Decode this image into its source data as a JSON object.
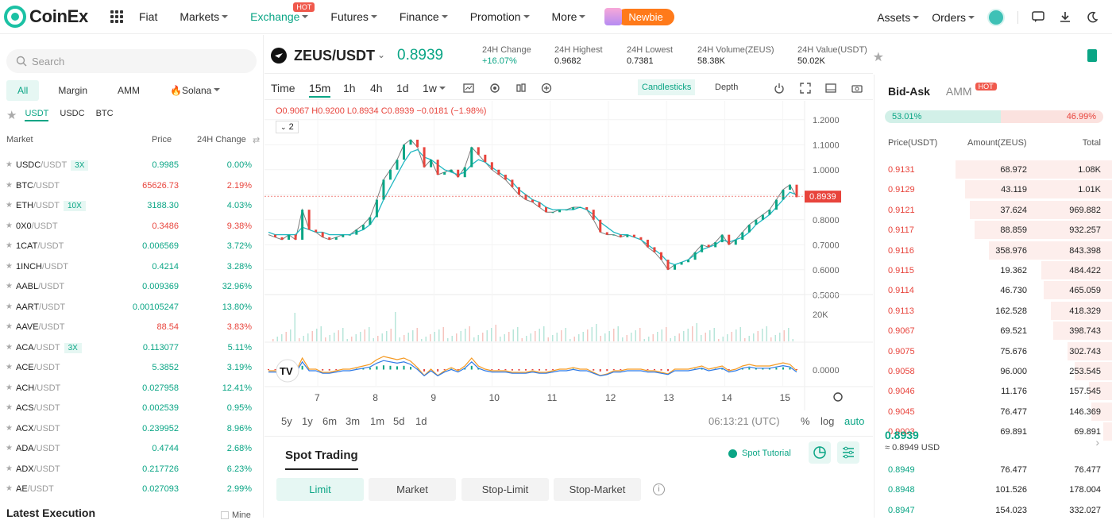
{
  "brand": {
    "name": "CoinEx"
  },
  "nav": {
    "items": [
      {
        "label": "Fiat",
        "caret": false
      },
      {
        "label": "Markets",
        "caret": true
      },
      {
        "label": "Exchange",
        "caret": true,
        "badge": "HOT",
        "active": true
      },
      {
        "label": "Futures",
        "caret": true
      },
      {
        "label": "Finance",
        "caret": true
      },
      {
        "label": "Promotion",
        "caret": true
      },
      {
        "label": "More",
        "caret": true
      }
    ],
    "newbie": "Newbie",
    "assets": "Assets",
    "orders": "Orders"
  },
  "left": {
    "search_placeholder": "Search",
    "categories": [
      "All",
      "Margin",
      "AMM",
      "🔥Solana"
    ],
    "quotes": [
      "USDT",
      "USDC",
      "BTC"
    ],
    "head": {
      "market": "Market",
      "price": "Price",
      "change": "24H Change"
    },
    "markets": [
      {
        "base": "USDC",
        "quote": "/USDT",
        "lev": "3X",
        "price": "0.9985",
        "change": "0.00%",
        "up": true
      },
      {
        "base": "BTC",
        "quote": "/USDT",
        "lev": "",
        "price": "65626.73",
        "change": "2.19%",
        "up": false
      },
      {
        "base": "ETH",
        "quote": "/USDT",
        "lev": "10X",
        "price": "3188.30",
        "change": "4.03%",
        "up": true
      },
      {
        "base": "0X0",
        "quote": "/USDT",
        "lev": "",
        "price": "0.3486",
        "change": "9.38%",
        "up": false
      },
      {
        "base": "1CAT",
        "quote": "/USDT",
        "lev": "",
        "price": "0.006569",
        "change": "3.72%",
        "up": true
      },
      {
        "base": "1INCH",
        "quote": "/USDT",
        "lev": "",
        "price": "0.4214",
        "change": "3.28%",
        "up": true
      },
      {
        "base": "AABL",
        "quote": "/USDT",
        "lev": "",
        "price": "0.009369",
        "change": "32.96%",
        "up": true
      },
      {
        "base": "AART",
        "quote": "/USDT",
        "lev": "",
        "price": "0.00105247",
        "change": "13.80%",
        "up": true
      },
      {
        "base": "AAVE",
        "quote": "/USDT",
        "lev": "",
        "price": "88.54",
        "change": "3.83%",
        "up": false
      },
      {
        "base": "ACA",
        "quote": "/USDT",
        "lev": "3X",
        "price": "0.113077",
        "change": "5.11%",
        "up": true
      },
      {
        "base": "ACE",
        "quote": "/USDT",
        "lev": "",
        "price": "5.3852",
        "change": "3.19%",
        "up": true
      },
      {
        "base": "ACH",
        "quote": "/USDT",
        "lev": "",
        "price": "0.027958",
        "change": "12.41%",
        "up": true
      },
      {
        "base": "ACS",
        "quote": "/USDT",
        "lev": "",
        "price": "0.002539",
        "change": "0.95%",
        "up": true
      },
      {
        "base": "ACX",
        "quote": "/USDT",
        "lev": "",
        "price": "0.239952",
        "change": "8.96%",
        "up": true
      },
      {
        "base": "ADA",
        "quote": "/USDT",
        "lev": "",
        "price": "0.4744",
        "change": "2.68%",
        "up": true
      },
      {
        "base": "ADX",
        "quote": "/USDT",
        "lev": "",
        "price": "0.217726",
        "change": "6.23%",
        "up": true
      },
      {
        "base": "AE",
        "quote": "/USDT",
        "lev": "",
        "price": "0.027093",
        "change": "2.99%",
        "up": true
      }
    ],
    "latest_execution": "Latest Execution",
    "mine": "Mine"
  },
  "pair": {
    "symbol": "ZEUS/USDT",
    "last_price": "0.8939",
    "stats": [
      {
        "label": "24H Change",
        "value": "+16.07%",
        "up": true
      },
      {
        "label": "24H Highest",
        "value": "0.9682"
      },
      {
        "label": "24H Lowest",
        "value": "0.7381"
      },
      {
        "label": "24H Volume(ZEUS)",
        "value": "58.38K"
      },
      {
        "label": "24H Value(USDT)",
        "value": "50.02K"
      }
    ]
  },
  "chart": {
    "timeframes": [
      "Time",
      "15m",
      "1h",
      "4h",
      "1d",
      "1w"
    ],
    "active_tf": "15m",
    "candlesticks": "Candlesticks",
    "depth": "Depth",
    "ohlc": "O0.9067  H0.9200  L0.8934  C0.8939  −0.0181  (−1.98%)",
    "indicators_count": "2",
    "ranges": [
      "5y",
      "1y",
      "6m",
      "3m",
      "1m",
      "5d",
      "1d"
    ],
    "clock": "06:13:21 (UTC)",
    "scale_opts": [
      "%",
      "log",
      "auto"
    ],
    "last_label": "0.8939"
  },
  "chart_data": {
    "type": "line",
    "price_axis_ticks": [
      "1.2000",
      "1.1000",
      "1.0000",
      "0.9000",
      "0.8000",
      "0.7000",
      "0.6000",
      "0.5000"
    ],
    "volume_axis_ticks": [
      "20K"
    ],
    "indicator_axis_ticks": [
      "0.0000"
    ],
    "x_ticks": [
      "7",
      "8",
      "9",
      "10",
      "11",
      "12",
      "13",
      "14",
      "15"
    ],
    "ylim": [
      0.45,
      1.25
    ],
    "series": [
      {
        "values": [
          0.74,
          0.73,
          0.72,
          0.74,
          0.72,
          0.84,
          0.76,
          0.75,
          0.73,
          0.72,
          0.73,
          0.74,
          0.74,
          0.76,
          0.78,
          0.81,
          0.88,
          0.96,
          1.0,
          1.04,
          1.1,
          1.12,
          1.09,
          1.01,
          1.04,
          0.98,
          0.99,
          1.0,
          0.97,
          1.01,
          1.09,
          1.06,
          1.03,
          1.0,
          0.98,
          0.96,
          0.93,
          0.9,
          0.88,
          0.87,
          0.85,
          0.83,
          0.83,
          0.84,
          0.84,
          0.85,
          0.85,
          0.84,
          0.8,
          0.75,
          0.74,
          0.74,
          0.73,
          0.74,
          0.73,
          0.72,
          0.69,
          0.67,
          0.64,
          0.6,
          0.62,
          0.63,
          0.64,
          0.67,
          0.7,
          0.69,
          0.71,
          0.74,
          0.7,
          0.72,
          0.75,
          0.78,
          0.8,
          0.82,
          0.84,
          0.88,
          0.92,
          0.94,
          0.89
        ]
      },
      {
        "values": [
          0.75,
          0.74,
          0.74,
          0.74,
          0.74,
          0.77,
          0.76,
          0.75,
          0.75,
          0.74,
          0.74,
          0.74,
          0.74,
          0.75,
          0.76,
          0.78,
          0.82,
          0.88,
          0.93,
          0.98,
          1.03,
          1.07,
          1.08,
          1.05,
          1.04,
          1.02,
          1.0,
          0.99,
          0.98,
          0.99,
          1.02,
          1.04,
          1.03,
          1.01,
          0.99,
          0.97,
          0.95,
          0.92,
          0.9,
          0.88,
          0.87,
          0.85,
          0.84,
          0.84,
          0.84,
          0.84,
          0.85,
          0.84,
          0.82,
          0.79,
          0.77,
          0.75,
          0.74,
          0.74,
          0.73,
          0.72,
          0.7,
          0.68,
          0.66,
          0.63,
          0.62,
          0.63,
          0.64,
          0.66,
          0.68,
          0.69,
          0.7,
          0.72,
          0.71,
          0.72,
          0.73,
          0.75,
          0.78,
          0.8,
          0.82,
          0.85,
          0.88,
          0.91,
          0.9
        ]
      }
    ]
  },
  "spot": {
    "title": "Spot Trading",
    "tutorial": "Spot Tutorial",
    "order_types": [
      "Limit",
      "Market",
      "Stop-Limit",
      "Stop-Market"
    ]
  },
  "orderbook": {
    "tabs": [
      "Bid-Ask",
      "AMM"
    ],
    "amm_badge": "HOT",
    "buy_ratio": "53.01%",
    "sell_ratio": "46.99%",
    "buy_frac": 0.5301,
    "head": {
      "price": "Price(USDT)",
      "amount": "Amount(ZEUS)",
      "total": "Total"
    },
    "asks": [
      {
        "p": "0.9131",
        "a": "68.972",
        "t": "1.08K",
        "depth": 0.66
      },
      {
        "p": "0.9129",
        "a": "43.119",
        "t": "1.01K",
        "depth": 0.62
      },
      {
        "p": "0.9121",
        "a": "37.624",
        "t": "969.882",
        "depth": 0.6
      },
      {
        "p": "0.9117",
        "a": "88.859",
        "t": "932.257",
        "depth": 0.58
      },
      {
        "p": "0.9116",
        "a": "358.976",
        "t": "843.398",
        "depth": 0.52
      },
      {
        "p": "0.9115",
        "a": "19.362",
        "t": "484.422",
        "depth": 0.3
      },
      {
        "p": "0.9114",
        "a": "46.730",
        "t": "465.059",
        "depth": 0.29
      },
      {
        "p": "0.9113",
        "a": "162.528",
        "t": "418.329",
        "depth": 0.26
      },
      {
        "p": "0.9067",
        "a": "69.521",
        "t": "398.743",
        "depth": 0.25
      },
      {
        "p": "0.9075",
        "a": "75.676",
        "t": "302.743",
        "depth": 0.19
      },
      {
        "p": "0.9058",
        "a": "96.000",
        "t": "253.545",
        "depth": 0.16
      },
      {
        "p": "0.9046",
        "a": "11.176",
        "t": "157.545",
        "depth": 0.1
      },
      {
        "p": "0.9045",
        "a": "76.477",
        "t": "146.369",
        "depth": 0.09
      },
      {
        "p": "0.9003",
        "a": "69.891",
        "t": "69.891",
        "depth": 0.04
      }
    ],
    "mid_price": "0.8939",
    "mid_usd": "≈ 0.8949 USD",
    "bids": [
      {
        "p": "0.8949",
        "a": "76.477",
        "t": "76.477"
      },
      {
        "p": "0.8948",
        "a": "101.526",
        "t": "178.004"
      },
      {
        "p": "0.8947",
        "a": "154.023",
        "t": "332.027"
      }
    ]
  }
}
